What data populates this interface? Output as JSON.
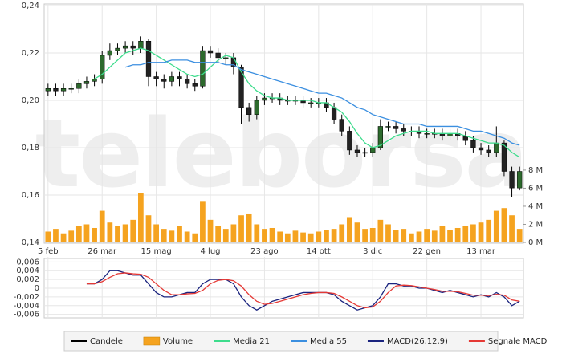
{
  "chart_data": [
    {
      "type": "candlestick",
      "watermark": "teleborsa",
      "categories": [
        "5 feb",
        null,
        null,
        null,
        null,
        null,
        null,
        "26 mar",
        null,
        null,
        null,
        null,
        null,
        null,
        "15 mag",
        null,
        null,
        null,
        null,
        null,
        null,
        "4 lug",
        null,
        null,
        null,
        null,
        null,
        null,
        "23 ago",
        null,
        null,
        null,
        null,
        null,
        null,
        "14 ott",
        null,
        null,
        null,
        null,
        null,
        null,
        "3 dic",
        null,
        null,
        null,
        null,
        null,
        null,
        "22 gen",
        null,
        null,
        null,
        null,
        null,
        null,
        "13 mar",
        null,
        null,
        null,
        null,
        null
      ],
      "ylim": [
        0.14,
        0.24
      ],
      "yticks": [
        {
          "value": 0.14,
          "label": "0,14"
        },
        {
          "value": 0.16,
          "label": "0,16"
        },
        {
          "value": 0.18,
          "label": "0,18"
        },
        {
          "value": 0.2,
          "label": "0,20"
        },
        {
          "value": 0.22,
          "label": "0,22"
        },
        {
          "value": 0.24,
          "label": "0,24"
        }
      ],
      "y2lim": [
        0,
        26.2
      ],
      "y2ticks": [
        {
          "value": 0,
          "label": "0 M"
        },
        {
          "value": 2,
          "label": "2 M"
        },
        {
          "value": 4,
          "label": "4 M"
        },
        {
          "value": 6,
          "label": "6 M"
        },
        {
          "value": 8,
          "label": "8 M"
        }
      ],
      "grid": true,
      "up_color": "#2d6a2d",
      "down_color": "#222222",
      "series": [
        {
          "name": "Candele",
          "type": "candlestick",
          "color": "#000000",
          "open": [
            0.204,
            0.205,
            0.204,
            0.205,
            0.205,
            0.207,
            0.208,
            0.209,
            0.219,
            0.221,
            0.222,
            0.223,
            0.222,
            0.225,
            0.21,
            0.209,
            0.208,
            0.21,
            0.209,
            0.207,
            0.206,
            0.221,
            0.22,
            0.218,
            0.218,
            0.214,
            0.197,
            0.194,
            0.2,
            0.201,
            0.201,
            0.2,
            0.2,
            0.2,
            0.199,
            0.199,
            0.199,
            0.197,
            0.192,
            0.187,
            0.179,
            0.178,
            0.178,
            0.18,
            0.189,
            0.189,
            0.188,
            0.187,
            0.187,
            0.186,
            0.186,
            0.186,
            0.185,
            0.186,
            0.185,
            0.183,
            0.18,
            0.179,
            0.178,
            0.182,
            0.17,
            0.163
          ],
          "high": [
            0.207,
            0.207,
            0.207,
            0.207,
            0.209,
            0.21,
            0.211,
            0.221,
            0.224,
            0.224,
            0.225,
            0.225,
            0.227,
            0.226,
            0.212,
            0.211,
            0.212,
            0.212,
            0.211,
            0.209,
            0.223,
            0.223,
            0.222,
            0.22,
            0.22,
            0.215,
            0.199,
            0.202,
            0.203,
            0.203,
            0.203,
            0.202,
            0.202,
            0.202,
            0.201,
            0.201,
            0.201,
            0.199,
            0.194,
            0.189,
            0.181,
            0.18,
            0.182,
            0.192,
            0.191,
            0.191,
            0.19,
            0.189,
            0.189,
            0.188,
            0.188,
            0.188,
            0.188,
            0.188,
            0.187,
            0.185,
            0.182,
            0.181,
            0.189,
            0.183,
            0.172,
            0.172
          ],
          "low": [
            0.202,
            0.202,
            0.202,
            0.203,
            0.203,
            0.205,
            0.206,
            0.207,
            0.217,
            0.219,
            0.22,
            0.219,
            0.22,
            0.206,
            0.206,
            0.205,
            0.206,
            0.206,
            0.205,
            0.204,
            0.205,
            0.218,
            0.216,
            0.215,
            0.211,
            0.19,
            0.191,
            0.192,
            0.198,
            0.199,
            0.198,
            0.198,
            0.198,
            0.197,
            0.197,
            0.197,
            0.195,
            0.19,
            0.185,
            0.177,
            0.176,
            0.176,
            0.176,
            0.179,
            0.187,
            0.186,
            0.185,
            0.185,
            0.184,
            0.184,
            0.184,
            0.183,
            0.183,
            0.183,
            0.181,
            0.178,
            0.177,
            0.176,
            0.176,
            0.168,
            0.159,
            0.162
          ],
          "close": [
            0.205,
            0.204,
            0.205,
            0.205,
            0.207,
            0.208,
            0.209,
            0.219,
            0.221,
            0.222,
            0.223,
            0.222,
            0.225,
            0.21,
            0.209,
            0.208,
            0.21,
            0.209,
            0.207,
            0.206,
            0.221,
            0.22,
            0.218,
            0.218,
            0.214,
            0.197,
            0.194,
            0.2,
            0.201,
            0.201,
            0.2,
            0.2,
            0.2,
            0.199,
            0.199,
            0.199,
            0.197,
            0.192,
            0.187,
            0.179,
            0.178,
            0.178,
            0.18,
            0.189,
            0.189,
            0.188,
            0.187,
            0.187,
            0.186,
            0.186,
            0.186,
            0.185,
            0.186,
            0.185,
            0.183,
            0.18,
            0.179,
            0.178,
            0.182,
            0.17,
            0.163,
            0.17
          ]
        },
        {
          "name": "Volume",
          "type": "bar",
          "axis": "y2",
          "color": "#f5a31f",
          "values": [
            1.2,
            1.5,
            1.0,
            1.3,
            1.8,
            2.0,
            1.6,
            3.5,
            2.2,
            1.8,
            2.0,
            2.5,
            5.5,
            3.0,
            2.0,
            1.5,
            1.3,
            1.8,
            1.2,
            1.0,
            4.5,
            2.5,
            1.8,
            1.5,
            2.0,
            3.0,
            3.2,
            2.0,
            1.5,
            1.6,
            1.2,
            1.0,
            1.3,
            1.1,
            1.0,
            1.2,
            1.4,
            1.5,
            2.0,
            2.8,
            2.2,
            1.5,
            1.6,
            2.5,
            2.0,
            1.4,
            1.5,
            1.0,
            1.2,
            1.5,
            1.3,
            1.8,
            1.4,
            1.6,
            1.8,
            2.0,
            2.2,
            2.5,
            3.5,
            3.8,
            3.0,
            1.5
          ]
        },
        {
          "name": "Media 21",
          "type": "line",
          "color": "#3ddc8c",
          "values": [
            null,
            null,
            null,
            null,
            null,
            null,
            0.209,
            0.211,
            0.214,
            0.217,
            0.22,
            0.221,
            0.222,
            0.221,
            0.219,
            0.217,
            0.215,
            0.213,
            0.211,
            0.21,
            0.211,
            0.214,
            0.217,
            0.219,
            0.218,
            0.212,
            0.207,
            0.204,
            0.202,
            0.201,
            0.201,
            0.2,
            0.2,
            0.2,
            0.2,
            0.199,
            0.199,
            0.197,
            0.195,
            0.191,
            0.186,
            0.182,
            0.18,
            0.181,
            0.183,
            0.185,
            0.186,
            0.187,
            0.187,
            0.187,
            0.186,
            0.186,
            0.186,
            0.186,
            0.185,
            0.184,
            0.183,
            0.182,
            0.182,
            0.181,
            0.178,
            0.176
          ]
        },
        {
          "name": "Media 55",
          "type": "line",
          "color": "#3b8fe0",
          "values": [
            null,
            null,
            null,
            null,
            null,
            null,
            null,
            null,
            null,
            null,
            0.214,
            0.215,
            0.215,
            0.216,
            0.216,
            0.216,
            0.217,
            0.217,
            0.217,
            0.216,
            0.216,
            0.216,
            0.216,
            0.215,
            0.215,
            0.213,
            0.212,
            0.211,
            0.21,
            0.209,
            0.208,
            0.207,
            0.206,
            0.205,
            0.204,
            0.203,
            0.203,
            0.202,
            0.201,
            0.199,
            0.197,
            0.196,
            0.194,
            0.193,
            0.192,
            0.191,
            0.19,
            0.19,
            0.19,
            0.189,
            0.189,
            0.189,
            0.189,
            0.189,
            0.188,
            0.187,
            0.187,
            0.186,
            0.185,
            0.184,
            0.182,
            0.181
          ]
        }
      ]
    },
    {
      "type": "line",
      "ylim": [
        -0.0068,
        0.0068
      ],
      "yticks": [
        {
          "value": -0.006,
          "label": "-0,006"
        },
        {
          "value": -0.004,
          "label": "-0,004"
        },
        {
          "value": -0.002,
          "label": "-0,002"
        },
        0,
        {
          "value": 0.002,
          "label": "0,002"
        },
        {
          "value": 0.004,
          "label": "0,004"
        },
        {
          "value": 0.006,
          "label": "0,006"
        }
      ],
      "grid": true,
      "series": [
        {
          "name": "MACD(26,12,9)",
          "type": "line",
          "color": "#1a237e",
          "values": [
            null,
            null,
            null,
            null,
            null,
            0.001,
            0.001,
            0.002,
            0.004,
            0.004,
            0.0035,
            0.003,
            0.003,
            0.001,
            -0.001,
            -0.002,
            -0.002,
            -0.0015,
            -0.001,
            -0.001,
            0.001,
            0.002,
            0.002,
            0.002,
            0.001,
            -0.002,
            -0.004,
            -0.005,
            -0.004,
            -0.003,
            -0.0025,
            -0.002,
            -0.0015,
            -0.001,
            -0.001,
            -0.001,
            -0.001,
            -0.0015,
            -0.003,
            -0.004,
            -0.005,
            -0.0045,
            -0.004,
            -0.002,
            0.001,
            0.001,
            0.0005,
            0.0005,
            0,
            0,
            -0.0005,
            -0.001,
            -0.0005,
            -0.001,
            -0.0015,
            -0.002,
            -0.0015,
            -0.002,
            -0.001,
            -0.002,
            -0.004,
            -0.003
          ]
        },
        {
          "name": "Segnale MACD",
          "type": "line",
          "color": "#e53935",
          "values": [
            null,
            null,
            null,
            null,
            null,
            0.001,
            0.001,
            0.0015,
            0.0025,
            0.0033,
            0.0035,
            0.0033,
            0.0032,
            0.0025,
            0.001,
            -0.0005,
            -0.0015,
            -0.0015,
            -0.0013,
            -0.0012,
            -0.0005,
            0.001,
            0.0018,
            0.002,
            0.0017,
            0.0005,
            -0.0015,
            -0.003,
            -0.0037,
            -0.0035,
            -0.003,
            -0.0025,
            -0.002,
            -0.0015,
            -0.0012,
            -0.001,
            -0.001,
            -0.0012,
            -0.002,
            -0.003,
            -0.004,
            -0.0045,
            -0.0043,
            -0.003,
            -0.001,
            0.0005,
            0.0007,
            0.0006,
            0.0003,
            0,
            -0.0003,
            -0.0007,
            -0.0007,
            -0.0008,
            -0.0012,
            -0.0016,
            -0.0016,
            -0.0017,
            -0.0014,
            -0.0016,
            -0.0027,
            -0.003
          ]
        }
      ]
    }
  ]
}
